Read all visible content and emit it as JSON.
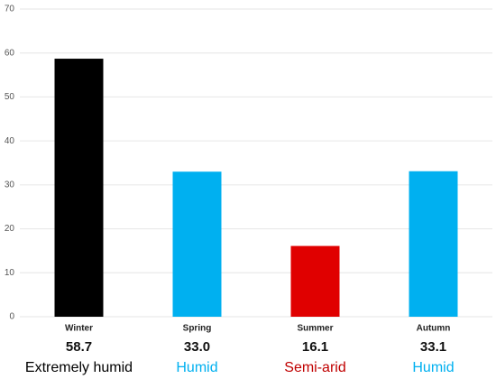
{
  "chart_data": {
    "type": "bar",
    "categories": [
      "Winter",
      "Spring",
      "Summer",
      "Autumn"
    ],
    "values": [
      58.7,
      33.0,
      16.1,
      33.1
    ],
    "value_labels": [
      "58.7",
      "33.0",
      "16.1",
      "33.1"
    ],
    "colors": [
      "#000000",
      "#00b0f0",
      "#e00000",
      "#00b0f0"
    ],
    "classes": [
      "Extremely humid",
      "Humid",
      "Semi-arid",
      "Humid"
    ],
    "class_colors": [
      "#000000",
      "#00b0f0",
      "#c00000",
      "#00b0f0"
    ],
    "ylim": [
      0,
      70
    ],
    "yticks": [
      0,
      10,
      20,
      30,
      40,
      50,
      60,
      70
    ],
    "grid": true
  }
}
